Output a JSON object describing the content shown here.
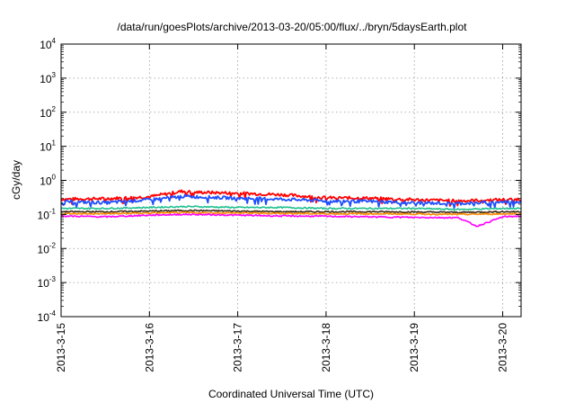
{
  "chart_data": {
    "type": "line",
    "title": "/data/run/goesPlots/archive/2013-03-20/05:00/flux/../bryn/5daysEarth.plot",
    "xlabel": "Coordinated Universal Time (UTC)",
    "ylabel": "cGy/day",
    "yscale": "log",
    "ylim": [
      0.0001,
      10000
    ],
    "xlim": [
      "2013-03-15 00:00",
      "2013-03-20 05:00"
    ],
    "x_ticks": [
      "2013-3-15",
      "2013-3-16",
      "2013-3-17",
      "2013-3-18",
      "2013-3-19",
      "2013-3-20"
    ],
    "y_ticks": [
      {
        "base": "10",
        "exp": "-4"
      },
      {
        "base": "10",
        "exp": "-3"
      },
      {
        "base": "10",
        "exp": "-2"
      },
      {
        "base": "10",
        "exp": "-1"
      },
      {
        "base": "10",
        "exp": "0"
      },
      {
        "base": "10",
        "exp": "1"
      },
      {
        "base": "10",
        "exp": "2"
      },
      {
        "base": "10",
        "exp": "3"
      },
      {
        "base": "10",
        "exp": "4"
      }
    ],
    "grid": true,
    "series": [
      {
        "color": "#ff0000",
        "x": [
          "2013-03-15",
          "2013-03-15 12:00",
          "2013-03-16",
          "2013-03-16 09:00",
          "2013-03-16 12:00",
          "2013-03-17",
          "2013-03-17 12:00",
          "2013-03-18",
          "2013-03-18 12:00",
          "2013-03-19",
          "2013-03-19 12:00",
          "2013-03-20",
          "2013-03-20 05:00"
        ],
        "values": [
          0.28,
          0.29,
          0.33,
          0.48,
          0.45,
          0.42,
          0.38,
          0.31,
          0.3,
          0.27,
          0.25,
          0.27,
          0.28
        ]
      },
      {
        "color": "#1f4fff",
        "x": [
          "2013-03-15",
          "2013-03-15 12:00",
          "2013-03-16",
          "2013-03-16 09:00",
          "2013-03-16 12:00",
          "2013-03-17",
          "2013-03-17 12:00",
          "2013-03-18",
          "2013-03-18 12:00",
          "2013-03-19",
          "2013-03-19 12:00",
          "2013-03-20",
          "2013-03-20 05:00"
        ],
        "values": [
          0.24,
          0.22,
          0.27,
          0.34,
          0.33,
          0.3,
          0.28,
          0.25,
          0.24,
          0.22,
          0.21,
          0.23,
          0.24
        ]
      },
      {
        "color": "#20c090",
        "x": [
          "2013-03-15",
          "2013-03-15 12:00",
          "2013-03-16",
          "2013-03-16 09:00",
          "2013-03-16 12:00",
          "2013-03-17",
          "2013-03-17 12:00",
          "2013-03-18",
          "2013-03-18 12:00",
          "2013-03-19",
          "2013-03-19 12:00",
          "2013-03-20",
          "2013-03-20 05:00"
        ],
        "values": [
          0.15,
          0.15,
          0.16,
          0.17,
          0.17,
          0.16,
          0.16,
          0.15,
          0.15,
          0.15,
          0.14,
          0.15,
          0.15
        ]
      },
      {
        "color": "#3a2a1a",
        "x": [
          "2013-03-15",
          "2013-03-15 12:00",
          "2013-03-16",
          "2013-03-16 09:00",
          "2013-03-16 12:00",
          "2013-03-17",
          "2013-03-17 12:00",
          "2013-03-18",
          "2013-03-18 12:00",
          "2013-03-19",
          "2013-03-19 12:00",
          "2013-03-20",
          "2013-03-20 05:00"
        ],
        "values": [
          0.12,
          0.12,
          0.125,
          0.13,
          0.13,
          0.125,
          0.12,
          0.12,
          0.12,
          0.118,
          0.115,
          0.12,
          0.12
        ]
      },
      {
        "color": "#ff8c00",
        "x": [
          "2013-03-15",
          "2013-03-15 12:00",
          "2013-03-16",
          "2013-03-16 09:00",
          "2013-03-16 12:00",
          "2013-03-17",
          "2013-03-17 12:00",
          "2013-03-18",
          "2013-03-18 12:00",
          "2013-03-19",
          "2013-03-19 12:00",
          "2013-03-20",
          "2013-03-20 05:00"
        ],
        "values": [
          0.105,
          0.105,
          0.11,
          0.112,
          0.112,
          0.11,
          0.108,
          0.105,
          0.105,
          0.103,
          0.1,
          0.104,
          0.105
        ]
      },
      {
        "color": "#ff00ff",
        "x": [
          "2013-03-15",
          "2013-03-15 12:00",
          "2013-03-16",
          "2013-03-16 09:00",
          "2013-03-16 12:00",
          "2013-03-17",
          "2013-03-17 12:00",
          "2013-03-18",
          "2013-03-18 12:00",
          "2013-03-19",
          "2013-03-19 12:00",
          "2013-03-19 17:00",
          "2013-03-20",
          "2013-03-20 05:00"
        ],
        "values": [
          0.09,
          0.085,
          0.095,
          0.1,
          0.1,
          0.095,
          0.09,
          0.088,
          0.085,
          0.082,
          0.08,
          0.045,
          0.085,
          0.09
        ]
      }
    ]
  }
}
